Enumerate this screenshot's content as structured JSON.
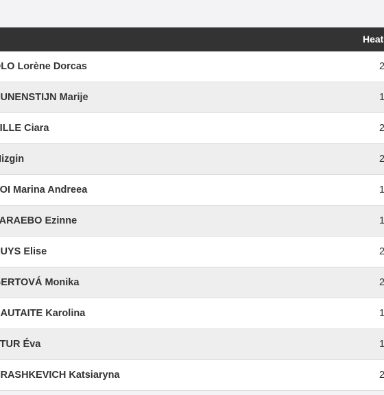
{
  "table": {
    "columns": {
      "heat": "Heat"
    },
    "rows": [
      {
        "name": "OLO Lorène Dorcas",
        "heat": "2"
      },
      {
        "name": "HUNENSTIJN Marije",
        "heat": "1"
      },
      {
        "name": "VILLE Ciara",
        "heat": "2"
      },
      {
        "name": "Mizgin",
        "heat": "2"
      },
      {
        "name": "SOI Marina Andreea",
        "heat": "1"
      },
      {
        "name": "PARAEBO Ezinne",
        "heat": "1"
      },
      {
        "name": "HUYS Elise",
        "heat": "2"
      },
      {
        "name": "GERTOVÁ Monika",
        "heat": "2"
      },
      {
        "name": "NAUTAITE Karolina",
        "heat": "1"
      },
      {
        "name": "PTUR Éva",
        "heat": "1"
      },
      {
        "name": "ARASHKEVICH Katsiaryna",
        "heat": "2"
      }
    ]
  }
}
